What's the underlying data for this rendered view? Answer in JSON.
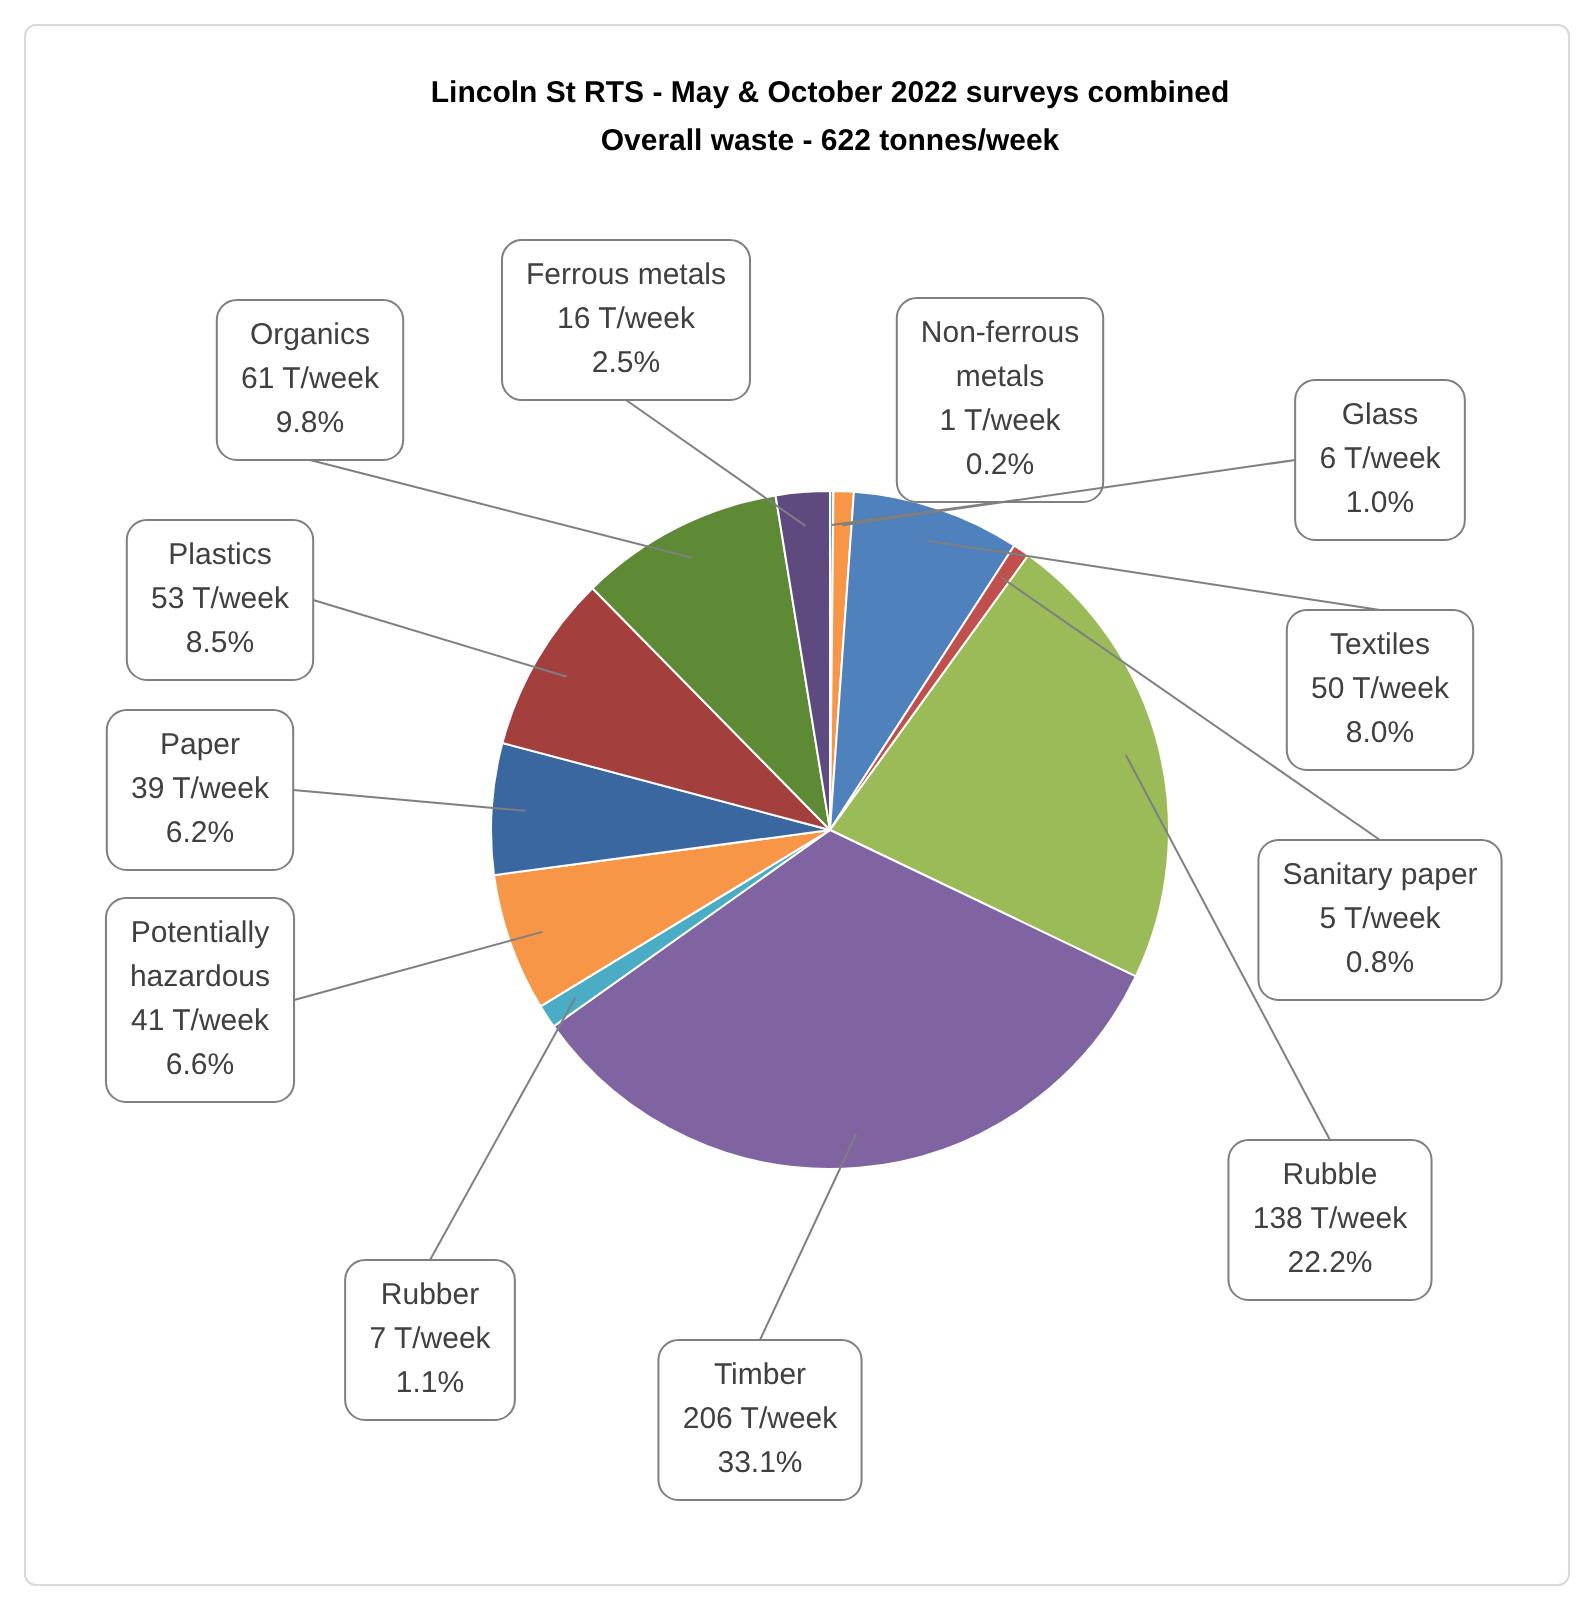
{
  "chart_data": {
    "type": "pie",
    "title": "Lincoln St RTS - May & October 2022 surveys combined",
    "subtitle": "Overall waste - 622 tonnes/week",
    "categories": [
      "Non-ferrous metals",
      "Glass",
      "Textiles",
      "Sanitary paper",
      "Rubble",
      "Timber",
      "Rubber",
      "Potentially hazardous",
      "Paper",
      "Plastics",
      "Organics",
      "Ferrous metals"
    ],
    "values": [
      1,
      6,
      50,
      5,
      138,
      206,
      7,
      41,
      39,
      53,
      61,
      16
    ],
    "value_labels": [
      "1 T/week 0.2%",
      "6 T/week 1.0%",
      "50 T/week 8.0%",
      "5 T/week 0.8%",
      "138 T/week 22.2%",
      "206 T/week 33.1%",
      "7 T/week 1.1%",
      "41 T/week 6.6%",
      "39 T/week 6.2%",
      "53 T/week 8.5%",
      "61 T/week 9.8%",
      "16 T/week 2.5%"
    ],
    "colors": [
      "#4bacc6",
      "#f79646",
      "#4f81bd",
      "#c0504d",
      "#9bbb59",
      "#8064a2",
      "#4bacc6",
      "#f79646",
      "#3a67a0",
      "#a33f3c",
      "#5e8a35",
      "#5f4a80"
    ],
    "legend": false
  }
}
